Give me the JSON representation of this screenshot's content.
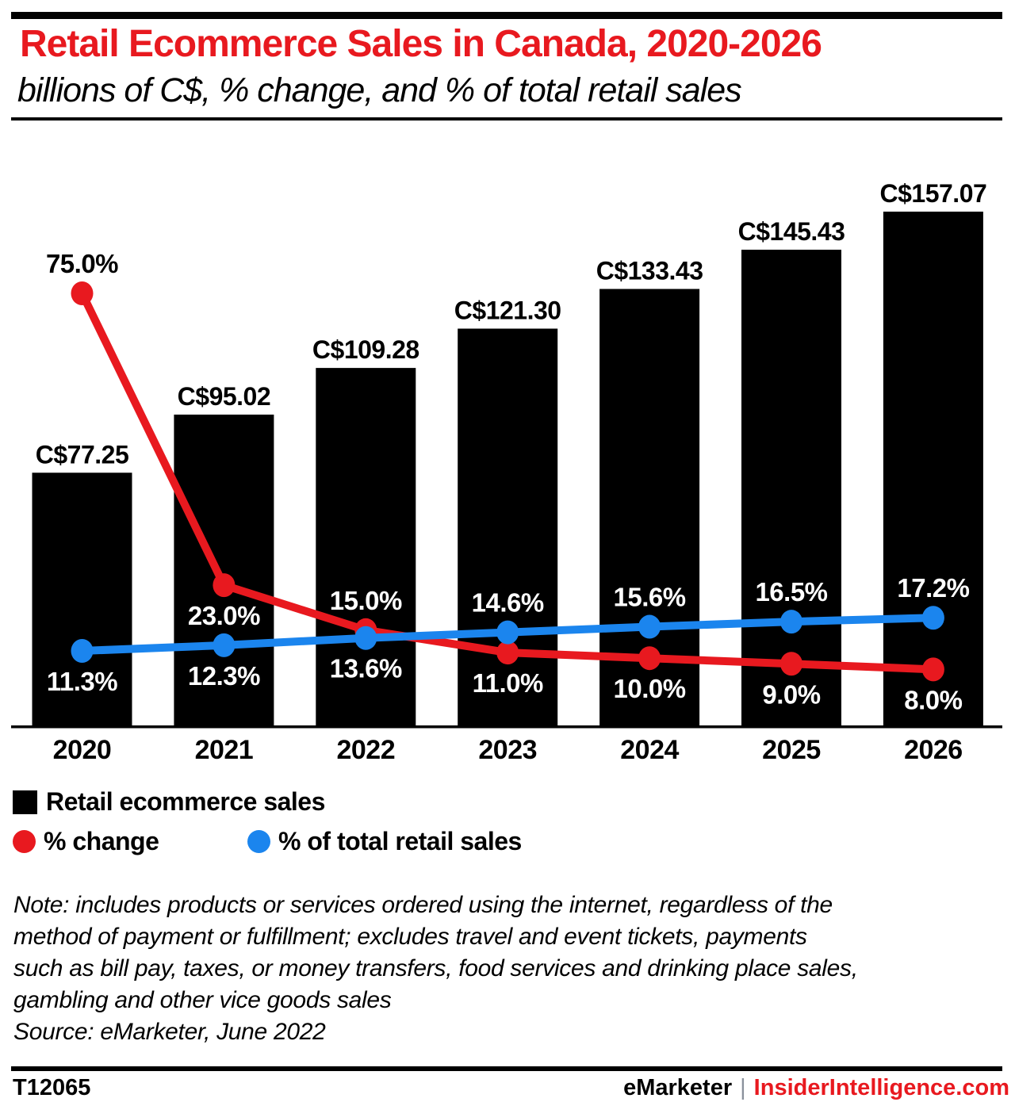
{
  "header": {
    "title": "Retail Ecommerce Sales in Canada, 2020-2026",
    "subtitle": "billions of C$, % change, and % of total retail sales"
  },
  "chart_data": {
    "type": "bar",
    "title": "Retail Ecommerce Sales in Canada, 2020-2026",
    "subtitle": "billions of C$, % change, and % of total retail sales",
    "categories": [
      "2020",
      "2021",
      "2022",
      "2023",
      "2024",
      "2025",
      "2026"
    ],
    "grid": false,
    "legend_position": "below",
    "bar_axis": {
      "min": 0,
      "max": 165,
      "unit": "billions of C$",
      "visible": false
    },
    "pct_axis": {
      "min": 0,
      "max": 80,
      "unit": "%",
      "visible": false
    },
    "series": [
      {
        "name": "Retail ecommerce sales",
        "type": "bar",
        "color": "#000000",
        "values": [
          77.25,
          95.02,
          109.28,
          121.3,
          133.43,
          145.43,
          157.07
        ],
        "labels": [
          "C$77.25",
          "C$95.02",
          "C$109.28",
          "C$121.30",
          "C$133.43",
          "C$145.43",
          "C$157.07"
        ]
      },
      {
        "name": "% change",
        "type": "line",
        "color": "#e8191f",
        "values": [
          75.0,
          23.0,
          15.0,
          11.0,
          10.0,
          9.0,
          8.0
        ],
        "labels": [
          "75.0%",
          "23.0%",
          "15.0%",
          "11.0%",
          "10.0%",
          "9.0%",
          "8.0%"
        ],
        "label_positions": [
          "above",
          "below",
          "above",
          "below",
          "below",
          "below",
          "below"
        ],
        "label_colors": [
          "#000000",
          "#ffffff",
          "#ffffff",
          "#ffffff",
          "#ffffff",
          "#ffffff",
          "#ffffff"
        ]
      },
      {
        "name": "% of total retail sales",
        "type": "line",
        "color": "#1b85ee",
        "values": [
          11.3,
          12.3,
          13.6,
          14.6,
          15.6,
          16.5,
          17.2
        ],
        "labels": [
          "11.3%",
          "12.3%",
          "13.6%",
          "14.6%",
          "15.6%",
          "16.5%",
          "17.2%"
        ],
        "label_positions": [
          "below",
          "below",
          "below",
          "above",
          "above",
          "above",
          "above"
        ],
        "label_colors": [
          "#ffffff",
          "#ffffff",
          "#ffffff",
          "#ffffff",
          "#ffffff",
          "#ffffff",
          "#ffffff"
        ]
      }
    ]
  },
  "legend": {
    "items": [
      {
        "label": "Retail ecommerce sales",
        "color": "#000000",
        "shape": "square"
      },
      {
        "label": "% change",
        "color": "#e8191f",
        "shape": "circle"
      },
      {
        "label": "% of total retail sales",
        "color": "#1b85ee",
        "shape": "circle"
      }
    ]
  },
  "note": {
    "lines": [
      "Note: includes products or services ordered using the internet, regardless of the",
      "method of payment or fulfillment; excludes travel and event tickets, payments",
      "such as bill pay, taxes, or money transfers, food services and drinking place sales,",
      "gambling and other vice goods sales"
    ],
    "source": "Source: eMarketer, June 2022"
  },
  "footer": {
    "id": "T12065",
    "brand": "eMarketer",
    "separator": "|",
    "site": "InsiderIntelligence.com"
  },
  "colors": {
    "accent_red": "#e8191f",
    "line_blue": "#1b85ee",
    "bar_black": "#000000",
    "pipe_gray": "#8a919c"
  }
}
